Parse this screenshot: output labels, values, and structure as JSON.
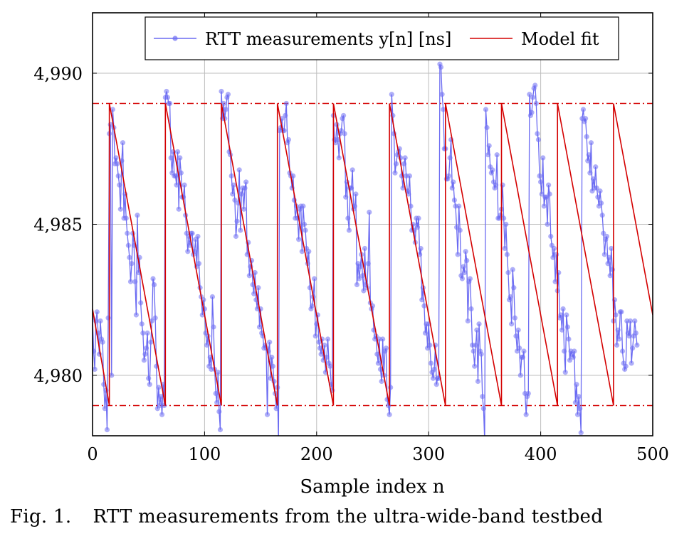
{
  "caption": {
    "label": "Fig. 1.",
    "text": "RTT measurements from the ultra-wide-band testbed"
  },
  "chart_data": {
    "type": "line",
    "xlabel": "Sample index n",
    "ylabel": "",
    "xlim": [
      0,
      500
    ],
    "ylim": [
      4.978,
      4.992
    ],
    "xticks": [
      0,
      100,
      200,
      300,
      400,
      500
    ],
    "xtick_labels": [
      "0",
      "100",
      "200",
      "300",
      "400",
      "500"
    ],
    "yticks": [
      4.98,
      4.985,
      4.99
    ],
    "ytick_labels": [
      "4,980",
      "4,985",
      "4,990"
    ],
    "grid": true,
    "legend_position": "top",
    "reference_lines": [
      4.989,
      4.979
    ],
    "colors": {
      "measurements": "#6b6bf2",
      "model": "#d40000",
      "grid": "#bdbdbd"
    },
    "series": [
      {
        "name": "RTT measurements y[n] [ns]",
        "style": "line-with-markers",
        "x_start": 0,
        "x_step": 1,
        "values": [
          4.9819,
          4.9808,
          4.9802,
          4.9818,
          4.9821,
          4.9814,
          4.9807,
          4.9818,
          4.9812,
          4.9811,
          4.9797,
          4.9789,
          4.9795,
          4.9782,
          4.9819,
          4.988,
          4.9883,
          4.98,
          4.9888,
          4.9882,
          4.987,
          4.9872,
          4.987,
          4.9866,
          4.9863,
          4.9855,
          4.9871,
          4.9877,
          4.9852,
          4.986,
          4.9852,
          4.9847,
          4.9843,
          4.9839,
          4.9831,
          4.9837,
          4.9847,
          4.9843,
          4.9831,
          4.982,
          4.9853,
          4.9834,
          4.9839,
          4.9824,
          4.9817,
          4.9814,
          4.9805,
          4.9807,
          4.9809,
          4.9814,
          4.9799,
          4.9797,
          4.9811,
          4.9818,
          4.9832,
          4.983,
          4.9819,
          4.9803,
          4.9789,
          4.9796,
          4.979,
          4.9793,
          4.9787,
          4.9797,
          4.979,
          4.9892,
          4.9894,
          4.9892,
          4.989,
          4.989,
          4.9872,
          4.9867,
          4.9874,
          4.9866,
          4.9866,
          4.9863,
          4.9874,
          4.9855,
          4.9872,
          4.9867,
          4.9859,
          4.9859,
          4.9863,
          4.9853,
          4.9847,
          4.9841,
          4.9846,
          4.9843,
          4.9847,
          4.9847,
          4.984,
          4.9841,
          4.9845,
          4.9836,
          4.9846,
          4.9837,
          4.9829,
          4.9826,
          4.982,
          4.9825,
          4.9822,
          4.9814,
          4.981,
          4.9813,
          4.9803,
          4.9806,
          4.9802,
          4.9826,
          4.9816,
          4.9802,
          4.9794,
          4.9791,
          4.9801,
          4.9788,
          4.9782,
          4.9894,
          4.9885,
          4.989,
          4.9885,
          4.9888,
          4.9892,
          4.9893,
          4.9874,
          4.9873,
          4.9866,
          4.986,
          4.9863,
          4.9858,
          4.9846,
          4.9851,
          4.9857,
          4.9868,
          4.9848,
          4.986,
          4.9862,
          4.9855,
          4.9862,
          4.9864,
          4.984,
          4.9844,
          4.9833,
          4.9836,
          4.9838,
          4.983,
          4.9827,
          4.9834,
          4.9825,
          4.9822,
          4.9829,
          4.9816,
          4.9822,
          4.9814,
          4.9813,
          4.9809,
          4.981,
          4.9809,
          4.9787,
          4.9808,
          4.9811,
          4.9799,
          4.9806,
          4.9803,
          4.9798,
          4.9794,
          4.9789,
          4.9796,
          4.9778,
          4.9881,
          4.9882,
          4.9885,
          4.9881,
          4.9881,
          4.9886,
          4.989,
          4.9877,
          4.9878,
          4.9867,
          4.9866,
          4.9862,
          4.9866,
          4.9858,
          4.9852,
          4.9856,
          4.9852,
          4.9845,
          4.9855,
          4.9856,
          4.9841,
          4.9856,
          4.985,
          4.9848,
          4.9842,
          4.9837,
          4.9841,
          4.9829,
          4.9822,
          4.9823,
          4.9826,
          4.9832,
          4.9813,
          4.9817,
          4.982,
          4.9811,
          4.9809,
          4.9807,
          4.9812,
          4.9805,
          4.981,
          4.9801,
          4.9806,
          4.9812,
          4.9804,
          4.9803,
          4.9797,
          4.9795,
          4.9886,
          4.9878,
          4.9877,
          4.9883,
          4.9878,
          4.9872,
          4.988,
          4.9881,
          4.9885,
          4.9886,
          4.988,
          4.9859,
          4.9864,
          4.9852,
          4.9848,
          4.9862,
          4.9862,
          4.9868,
          4.9855,
          4.9856,
          4.986,
          4.983,
          4.9837,
          4.9832,
          4.9836,
          4.984,
          4.9833,
          4.9828,
          4.9842,
          4.983,
          4.9829,
          4.9837,
          4.9854,
          4.9824,
          4.9822,
          4.9823,
          4.9815,
          4.9812,
          4.9813,
          4.9807,
          4.9804,
          4.9812,
          4.9802,
          4.9798,
          4.9812,
          4.98,
          4.9808,
          4.9809,
          4.9792,
          4.979,
          4.9787,
          4.9796,
          4.9893,
          4.9886,
          4.988,
          4.9867,
          4.987,
          4.9873,
          4.9874,
          4.9875,
          4.9872,
          4.9866,
          4.9862,
          4.987,
          4.9872,
          4.9866,
          4.9861,
          4.986,
          4.9866,
          4.9856,
          4.9848,
          4.985,
          4.9848,
          4.9844,
          4.9852,
          4.9849,
          4.9852,
          4.984,
          4.9842,
          4.9825,
          4.9829,
          4.9823,
          4.9814,
          4.9817,
          4.9809,
          4.9817,
          4.981,
          4.9804,
          4.9801,
          4.9799,
          4.9802,
          4.981,
          4.9797,
          4.9799,
          4.9799,
          4.9903,
          4.9902,
          4.9893,
          4.9888,
          4.9875,
          4.9875,
          4.9865,
          4.9865,
          4.9866,
          4.9872,
          4.9878,
          4.9862,
          4.9864,
          4.9858,
          4.9856,
          4.9849,
          4.984,
          4.9856,
          4.9848,
          4.9833,
          4.9832,
          4.9836,
          4.9834,
          4.9841,
          4.9838,
          4.9818,
          4.9831,
          4.9832,
          4.9822,
          4.981,
          4.9808,
          4.9803,
          4.981,
          4.9815,
          4.9798,
          4.9817,
          4.9808,
          4.9807,
          4.9793,
          4.9789,
          4.9778,
          4.9888,
          4.9882,
          4.9873,
          4.9876,
          4.9869,
          4.9867,
          4.9868,
          4.9864,
          4.9862,
          4.9863,
          4.9873,
          4.9852,
          4.9852,
          4.9853,
          4.9855,
          4.9863,
          4.9852,
          4.9842,
          4.985,
          4.984,
          4.9834,
          4.9825,
          4.9826,
          4.9817,
          4.9835,
          4.9829,
          4.9819,
          4.9813,
          4.9808,
          4.9815,
          4.9809,
          4.98,
          4.9806,
          4.9806,
          4.9808,
          4.9794,
          4.9787,
          4.9793,
          4.9794,
          4.9893,
          4.9886,
          4.9887,
          4.9892,
          4.9895,
          4.9896,
          4.989,
          4.988,
          4.9878,
          4.9866,
          4.9864,
          4.986,
          4.9872,
          4.9856,
          4.9859,
          4.9859,
          4.985,
          4.9863,
          4.986,
          4.9846,
          4.9843,
          4.9839,
          4.9842,
          4.9831,
          4.984,
          4.9828,
          4.9834,
          4.9819,
          4.982,
          4.9815,
          4.9822,
          4.9808,
          4.9801,
          4.982,
          4.9816,
          4.9812,
          4.9805,
          4.9808,
          4.9807,
          4.9806,
          4.9808,
          4.9791,
          4.9797,
          4.9787,
          4.9793,
          4.9789,
          4.9781,
          4.9885,
          4.9888,
          4.9884,
          4.9885,
          4.9879,
          4.9871,
          4.9873,
          4.9867,
          4.9877,
          4.9861,
          4.9865,
          4.9862,
          4.9869,
          4.9862,
          4.9859,
          4.9856,
          4.9861,
          4.9857,
          4.9853,
          4.9847,
          4.984,
          4.9845,
          4.9846,
          4.9837,
          4.9839,
          4.9833,
          4.9842,
          4.9835,
          4.9818,
          4.9825,
          4.982,
          4.981,
          4.9815,
          4.9812,
          4.9821,
          4.9821,
          4.9808,
          4.9804,
          4.9802,
          4.9803,
          4.9818,
          4.9814,
          4.9813,
          4.9818,
          4.9804,
          4.9809,
          4.9813,
          4.9818,
          4.9814,
          4.981
        ]
      },
      {
        "name": "Model fit",
        "style": "line",
        "x": [
          0,
          15,
          15,
          65,
          65,
          115,
          115,
          165,
          165,
          215,
          215,
          265,
          265,
          315,
          315,
          365,
          365,
          415,
          415,
          465,
          465,
          500
        ],
        "values": [
          4.9822,
          4.979,
          4.989,
          4.979,
          4.989,
          4.979,
          4.989,
          4.979,
          4.989,
          4.979,
          4.989,
          4.979,
          4.989,
          4.979,
          4.989,
          4.979,
          4.989,
          4.979,
          4.989,
          4.979,
          4.989,
          4.982
        ]
      }
    ]
  }
}
